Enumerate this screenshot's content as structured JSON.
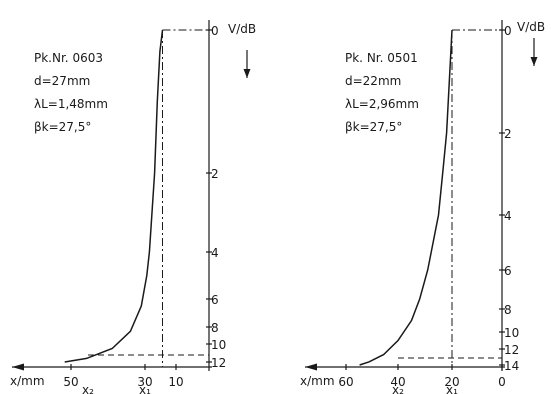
{
  "chart_data": [
    {
      "type": "line",
      "info": [
        "Pk.Nr. 0603",
        "d=27mm",
        "λL=1,48mm",
        "βk=27,5°"
      ],
      "xlabel": "x/mm",
      "ylabel": "V/dB",
      "x_ticks": [
        "50",
        "30",
        "10"
      ],
      "x_ref_labels": [
        "x₂",
        "x₁"
      ],
      "y_ticks": [
        "0",
        "2",
        "4",
        "6",
        "8",
        "10",
        "12"
      ],
      "x_dir": "reversed",
      "y_dir": "downward",
      "ylim": [
        0,
        12
      ],
      "series": [
        {
          "x": [
            20,
            21.5,
            23,
            24.5,
            26,
            27.5,
            29,
            31,
            34,
            39,
            46,
            52
          ],
          "y": [
            0,
            0.3,
            1,
            2,
            3,
            4,
            5,
            6.5,
            8.5,
            10.5,
            11.6,
            12
          ]
        }
      ]
    },
    {
      "type": "line",
      "info": [
        "Pk. Nr. 0501",
        "d=22mm",
        "λL=2,96mm",
        "βk=27,5°"
      ],
      "xlabel": "x/mm",
      "ylabel": "V/dB",
      "x_ticks": [
        "60",
        "40",
        "20",
        "0"
      ],
      "x_ref_labels": [
        "x₂",
        "x₁"
      ],
      "y_ticks": [
        "0",
        "2",
        "4",
        "6",
        "8",
        "10",
        "12",
        "14"
      ],
      "x_dir": "reversed",
      "y_dir": "downward",
      "ylim": [
        0,
        14
      ],
      "series": [
        {
          "x": [
            20,
            21,
            22,
            23.5,
            25,
            27,
            29,
            32,
            35,
            40,
            46,
            52,
            56
          ],
          "y": [
            0,
            1,
            2,
            3,
            4,
            5,
            6,
            7.5,
            9,
            11,
            12.7,
            13.6,
            14
          ]
        }
      ]
    }
  ]
}
